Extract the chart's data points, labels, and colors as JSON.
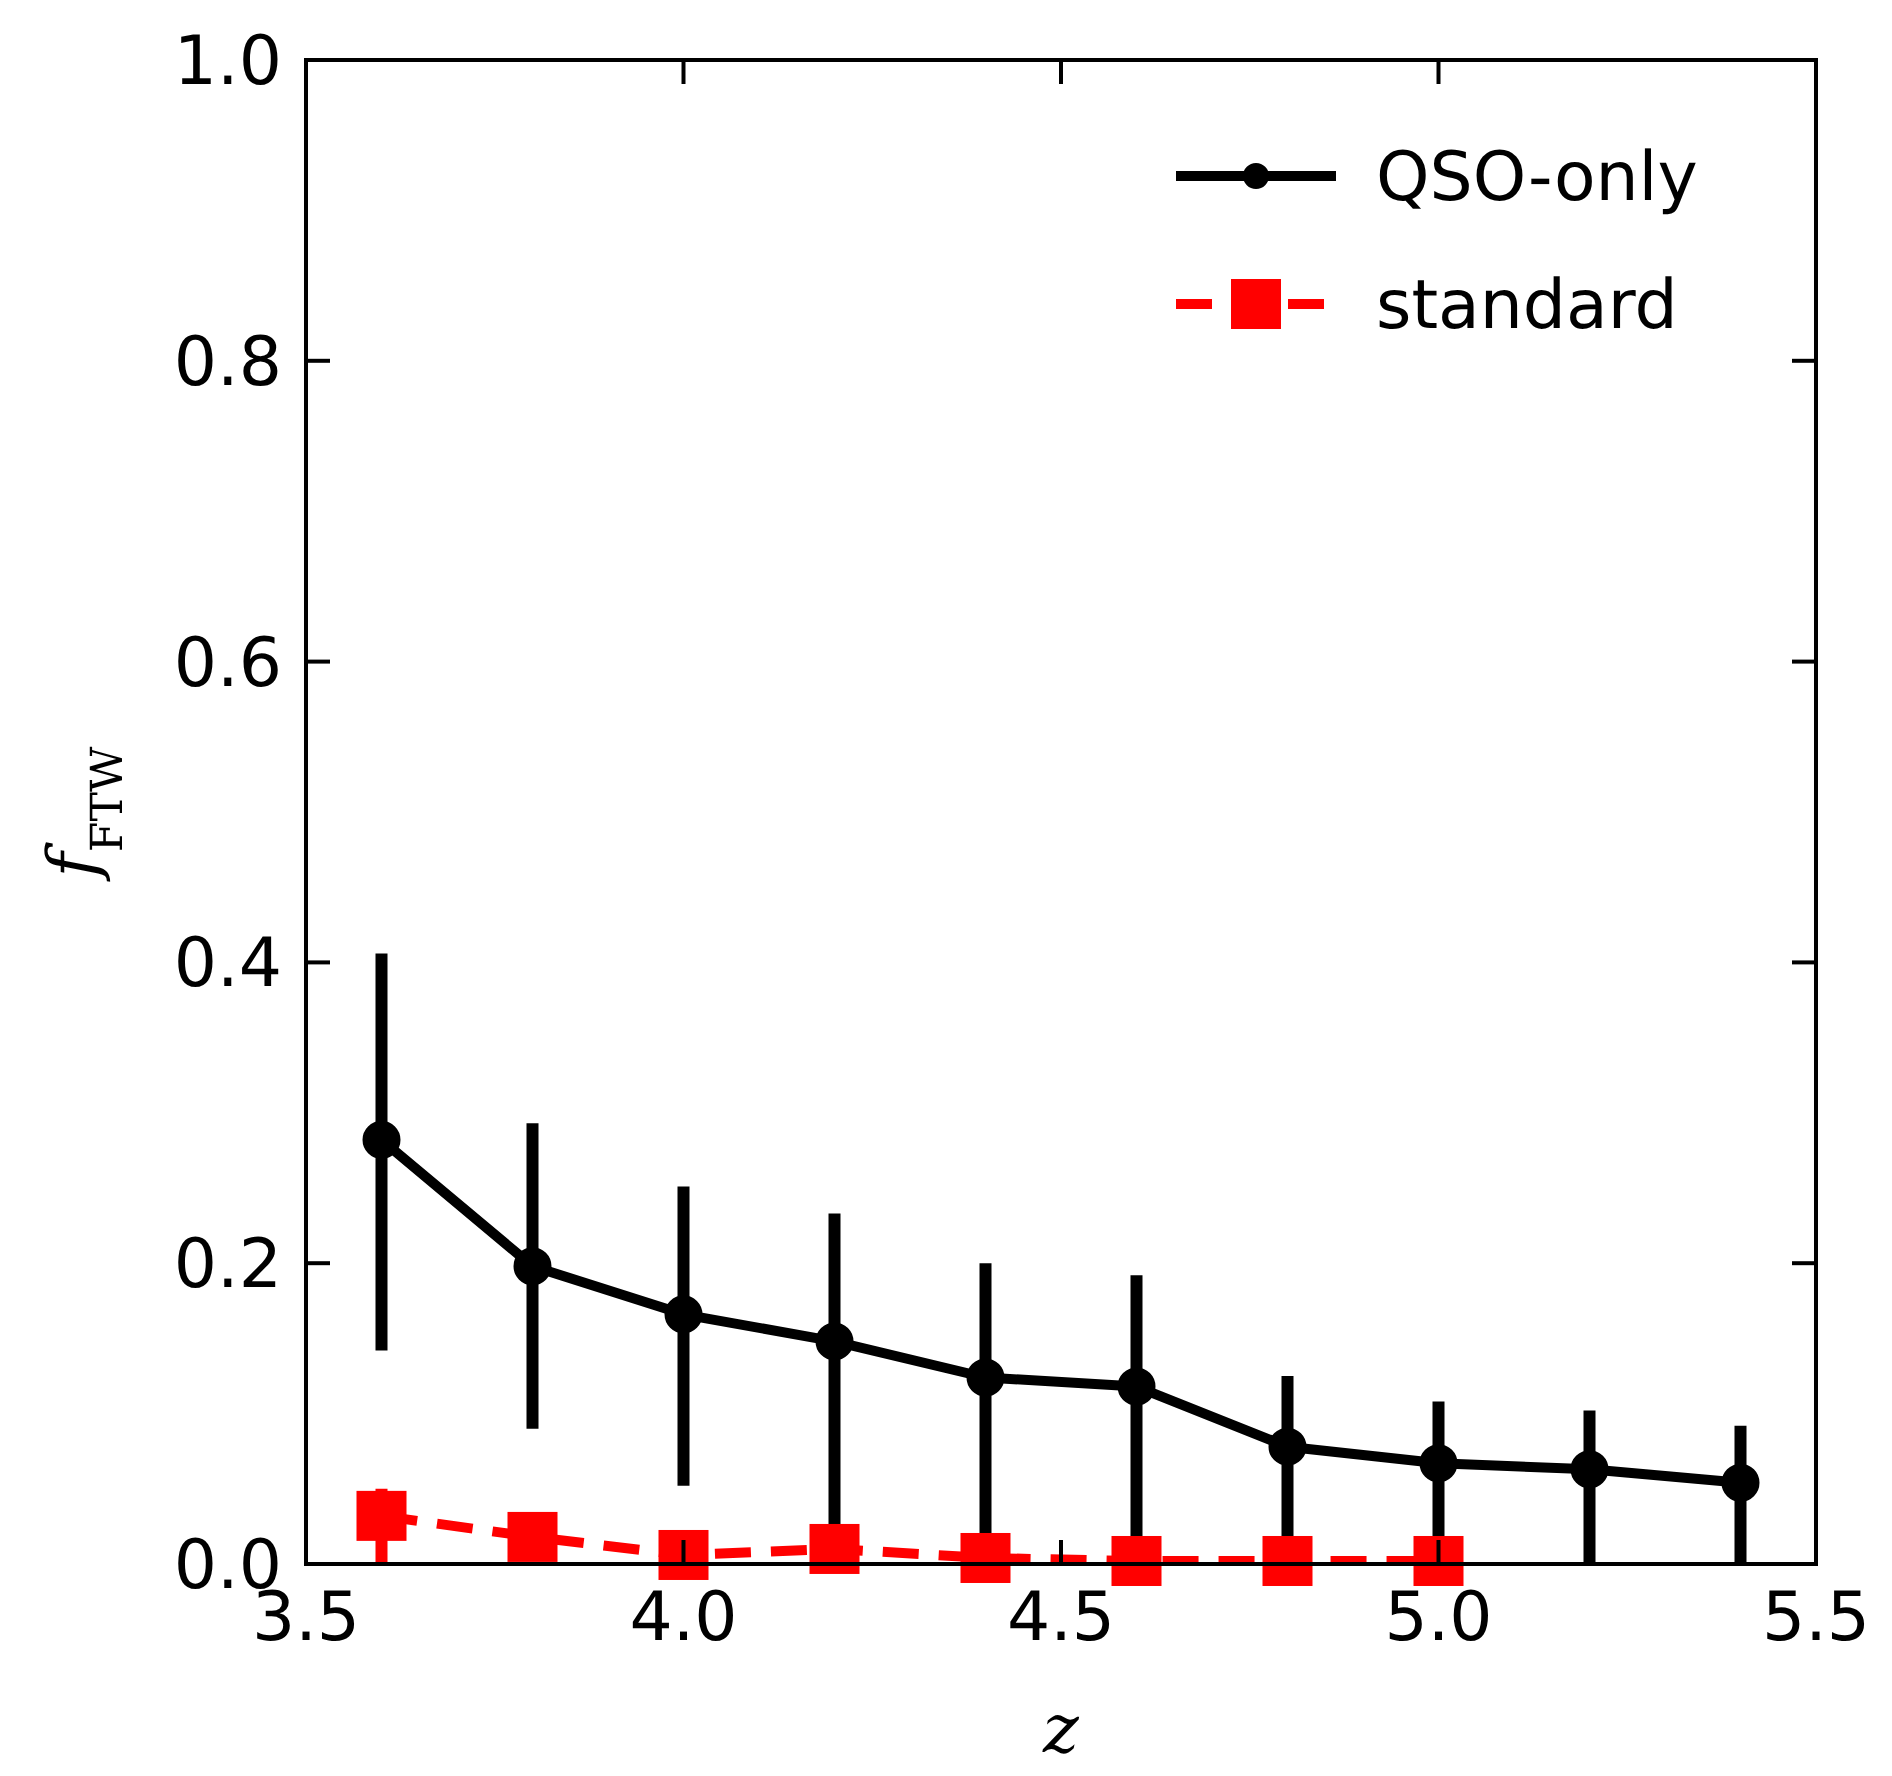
{
  "chart_data": {
    "type": "line",
    "xlabel": "z",
    "ylabel": "f$_{FTW}$",
    "xlim": [
      3.5,
      5.5
    ],
    "ylim": [
      0,
      1
    ],
    "xticks": [
      3.5,
      {
        "value": 4,
        "label": "4.0"
      },
      4.5,
      {
        "value": 5,
        "label": "5.0"
      },
      5.5
    ],
    "yticks": [
      {
        "value": 0,
        "label": "0.0"
      },
      0.2,
      0.4,
      0.6,
      0.8,
      {
        "value": 1,
        "label": "1.0"
      }
    ],
    "legend": "top right",
    "grid": false,
    "x": [
      3.6,
      3.8,
      4.0,
      4.2,
      4.4,
      4.6,
      4.8,
      5.0,
      5.2,
      5.4
    ],
    "series": [
      {
        "name": "QSO-only",
        "color": "#000000",
        "marker": "circle",
        "line_style": "solid",
        "values": [
          0.282,
          0.198,
          0.166,
          0.148,
          0.124,
          0.118,
          0.078,
          0.067,
          0.063,
          0.054
        ],
        "errors": [
          [
            0.142,
            0.406
          ],
          [
            0.09,
            0.293
          ],
          [
            0.052,
            0.251
          ],
          [
            0,
            0.233
          ],
          [
            0,
            0.2
          ],
          [
            0,
            0.192
          ],
          [
            0,
            0.125
          ],
          [
            0,
            0.108
          ],
          [
            0,
            0.102
          ],
          [
            0,
            0.092
          ]
        ]
      },
      {
        "name": "standard",
        "color": "#ff0000",
        "marker": "square",
        "line_style": "dashed",
        "x": [
          3.6,
          3.8,
          4.0,
          4.2,
          4.4,
          4.6,
          4.8,
          5.0
        ],
        "values": [
          0.032,
          0.018,
          0.006,
          0.01,
          0.004,
          0.002,
          0.002,
          0.002
        ],
        "errors": [
          [
            0,
            0.05
          ],
          null,
          null,
          null,
          null,
          null,
          null,
          null
        ]
      }
    ]
  }
}
